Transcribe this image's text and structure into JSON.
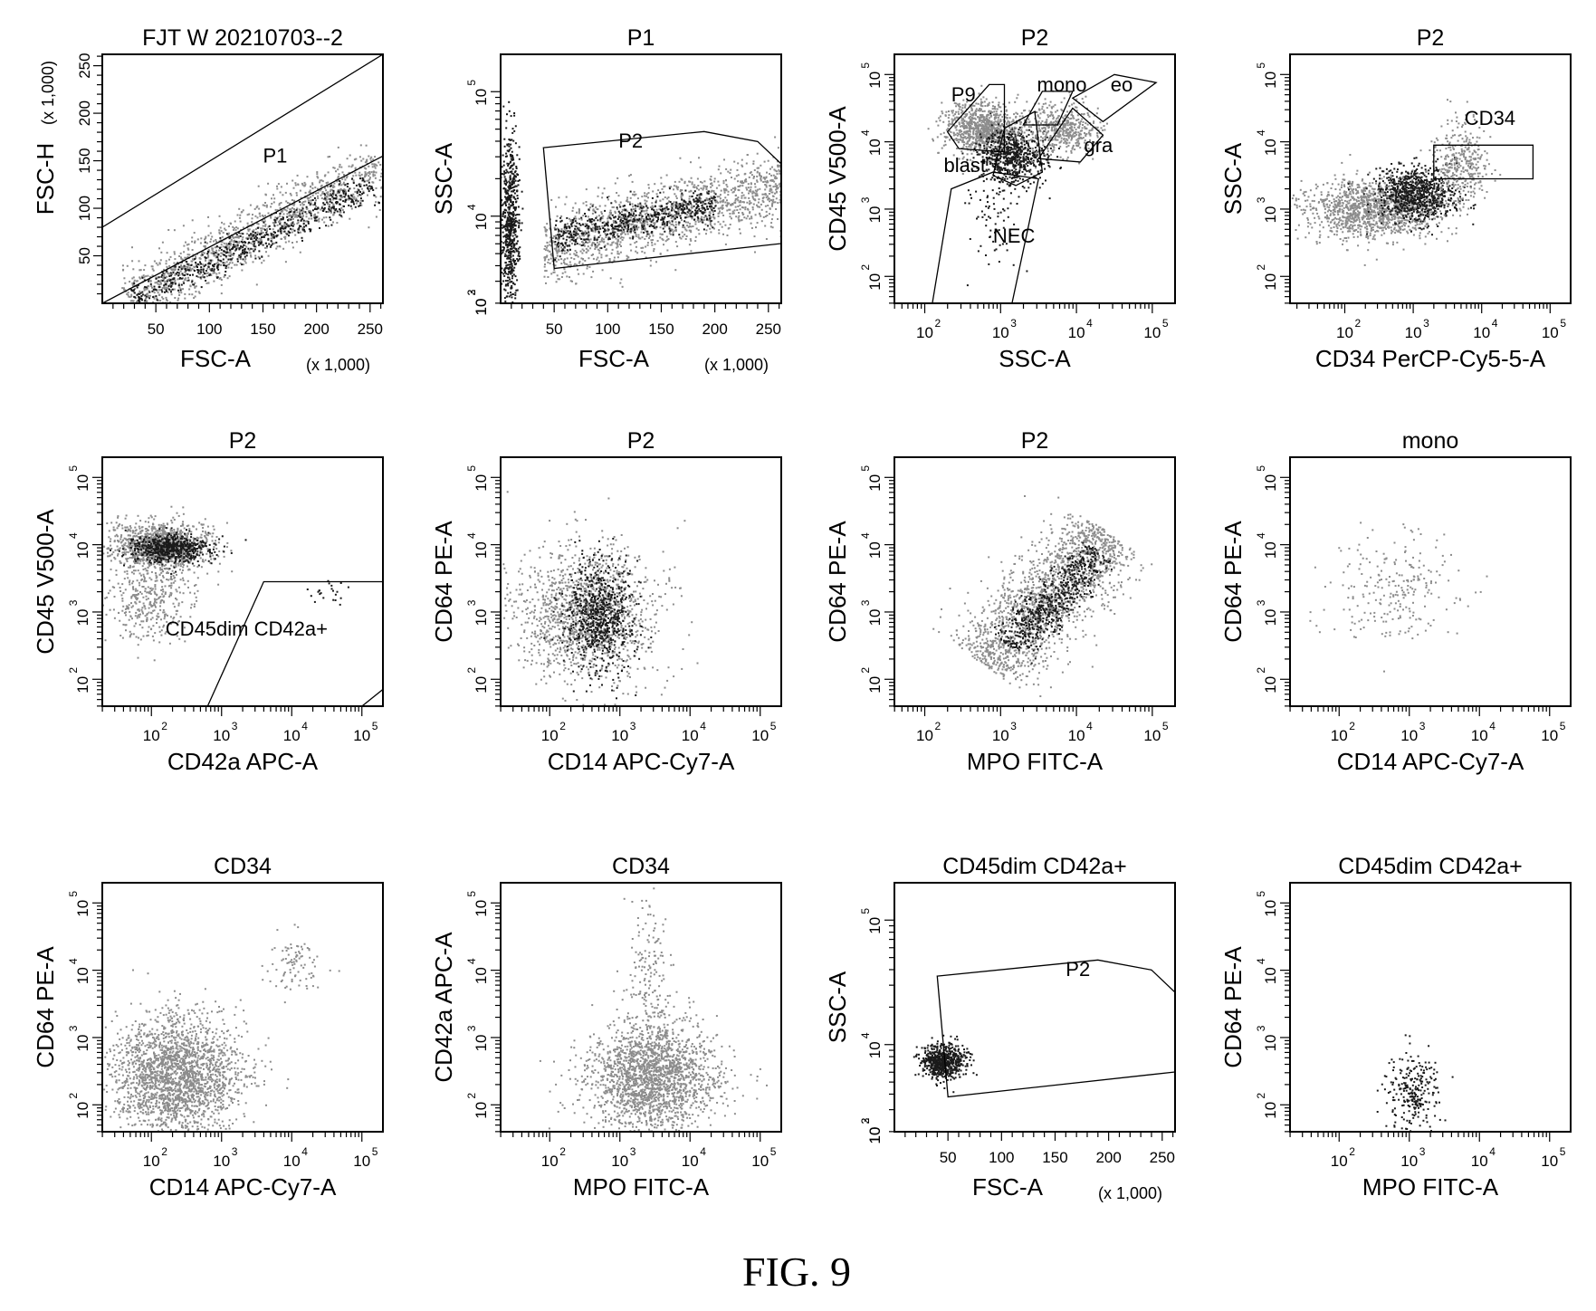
{
  "figure_caption": "FIG. 9",
  "chart_data": [
    {
      "type": "scatter",
      "title": "FJT W 20210703--2",
      "xlabel": "FSC-A",
      "xunit": "(x 1,000)",
      "ylabel": "FSC-H",
      "yunit": "(x 1,000)",
      "xscale": "linear",
      "yscale": "linear",
      "xlim": [
        0,
        262
      ],
      "ylim": [
        0,
        262
      ],
      "xticks": [
        50,
        100,
        150,
        200,
        250
      ],
      "yticks": [
        50,
        100,
        150,
        200,
        250
      ],
      "gates": [
        {
          "name": "P1",
          "label_at": [
            150,
            148
          ],
          "polygon": [
            [
              0,
              80
            ],
            [
              262,
              262
            ],
            [
              262,
              155
            ],
            [
              0,
              0
            ]
          ]
        }
      ],
      "populations": [
        {
          "shape": "line",
          "from": [
            25,
            5
          ],
          "to": [
            260,
            145
          ],
          "spread": 14,
          "n": 1300,
          "shade": "gray"
        },
        {
          "shape": "line",
          "from": [
            30,
            5
          ],
          "to": [
            250,
            125
          ],
          "spread": 8,
          "n": 600,
          "shade": "black"
        }
      ]
    },
    {
      "type": "scatter",
      "title": "P1",
      "xlabel": "FSC-A",
      "xunit": "(x 1,000)",
      "ylabel": "SSC-A",
      "xscale": "linear",
      "yscale": "log",
      "xlim": [
        0,
        262
      ],
      "ylim": [
        3.3,
        5.3
      ],
      "xticks": [
        50,
        100,
        150,
        200,
        250
      ],
      "yticks_exp": [
        2,
        3,
        4,
        5
      ],
      "gates": [
        {
          "name": "P2",
          "label_at": [
            110,
            4.55
          ],
          "polygon": [
            [
              40,
              4.55
            ],
            [
              190,
              4.68
            ],
            [
              240,
              4.6
            ],
            [
              262,
              4.42
            ],
            [
              262,
              3.78
            ],
            [
              50,
              3.58
            ]
          ]
        }
      ],
      "populations": [
        {
          "shape": "line",
          "from": [
            40,
            3.75
          ],
          "to": [
            262,
            4.25
          ],
          "spread": 0.15,
          "n": 1500,
          "shade": "gray"
        },
        {
          "shape": "blob",
          "center": [
            8,
            3.95
          ],
          "sd": [
            4,
            0.35
          ],
          "n": 650,
          "shade": "black"
        },
        {
          "shape": "line",
          "from": [
            50,
            3.85
          ],
          "to": [
            200,
            4.1
          ],
          "spread": 0.07,
          "n": 550,
          "shade": "black"
        }
      ]
    },
    {
      "type": "scatter",
      "title": "P2",
      "xlabel": "SSC-A",
      "ylabel": "CD45 V500-A",
      "xscale": "log",
      "yscale": "log",
      "xlim": [
        1.6,
        5.3
      ],
      "ylim": [
        1.6,
        5.3
      ],
      "xticks_exp": [
        2,
        3,
        4,
        5
      ],
      "yticks_exp": [
        2,
        3,
        4,
        5
      ],
      "gates": [
        {
          "name": "P9",
          "label_at": [
            2.35,
            4.6
          ],
          "polygon": [
            [
              2.3,
              4.15
            ],
            [
              2.85,
              4.85
            ],
            [
              3.05,
              4.85
            ],
            [
              3.05,
              3.85
            ],
            [
              2.45,
              3.9
            ]
          ]
        },
        {
          "name": "mono",
          "label_at": [
            3.48,
            4.75
          ],
          "polygon": [
            [
              3.3,
              4.25
            ],
            [
              3.55,
              4.75
            ],
            [
              3.95,
              4.75
            ],
            [
              3.75,
              4.25
            ]
          ]
        },
        {
          "name": "eo",
          "label_at": [
            4.45,
            4.75
          ],
          "polygon": [
            [
              3.95,
              4.65
            ],
            [
              4.5,
              5.0
            ],
            [
              5.05,
              4.88
            ],
            [
              4.35,
              4.3
            ]
          ]
        },
        {
          "name": "gra",
          "label_at": [
            4.1,
            3.85
          ],
          "polygon": [
            [
              3.5,
              3.75
            ],
            [
              3.95,
              4.5
            ],
            [
              4.35,
              4.1
            ],
            [
              4.05,
              3.7
            ]
          ]
        },
        {
          "name": "blast",
          "label_at": [
            2.25,
            3.55
          ],
          "polygon": [
            [
              2.9,
              3.5
            ],
            [
              3.05,
              4.2
            ],
            [
              3.45,
              4.45
            ],
            [
              3.55,
              3.55
            ],
            [
              3.2,
              3.35
            ]
          ]
        },
        {
          "name": "NEC",
          "label_at": [
            2.9,
            2.5
          ],
          "polygon": [
            [
              2.1,
              1.6
            ],
            [
              2.35,
              3.3
            ],
            [
              2.9,
              3.55
            ],
            [
              3.5,
              3.45
            ],
            [
              3.15,
              1.6
            ]
          ]
        }
      ],
      "populations": [
        {
          "shape": "blob",
          "center": [
            2.75,
            4.2
          ],
          "sd": [
            0.25,
            0.2
          ],
          "n": 900,
          "shade": "gray"
        },
        {
          "shape": "blob",
          "center": [
            3.15,
            3.8
          ],
          "sd": [
            0.22,
            0.2
          ],
          "n": 650,
          "shade": "black"
        },
        {
          "shape": "blob",
          "center": [
            3.8,
            4.2
          ],
          "sd": [
            0.25,
            0.2
          ],
          "n": 500,
          "shade": "gray"
        },
        {
          "shape": "blob",
          "center": [
            2.9,
            3.0
          ],
          "sd": [
            0.2,
            0.45
          ],
          "n": 90,
          "shade": "black"
        }
      ]
    },
    {
      "type": "scatter",
      "title": "P2",
      "xlabel": "CD34 PerCP-Cy5-5-A",
      "ylabel": "SSC-A",
      "xscale": "log",
      "yscale": "log",
      "xlim": [
        1.2,
        5.3
      ],
      "ylim": [
        1.6,
        5.3
      ],
      "xticks_exp": [
        2,
        3,
        4,
        5
      ],
      "yticks_exp": [
        2,
        3,
        4,
        5
      ],
      "gates": [
        {
          "name": "CD34",
          "label_at": [
            3.75,
            4.25
          ],
          "polygon": [
            [
              3.3,
              3.45
            ],
            [
              4.75,
              3.45
            ],
            [
              4.75,
              3.95
            ],
            [
              3.3,
              3.95
            ]
          ]
        }
      ],
      "populations": [
        {
          "shape": "blob",
          "center": [
            2.4,
            3.0
          ],
          "sd": [
            0.5,
            0.22
          ],
          "n": 1300,
          "shade": "gray"
        },
        {
          "shape": "blob",
          "center": [
            3.05,
            3.25
          ],
          "sd": [
            0.28,
            0.2
          ],
          "n": 800,
          "shade": "black"
        },
        {
          "shape": "blob",
          "center": [
            3.7,
            3.7
          ],
          "sd": [
            0.2,
            0.3
          ],
          "n": 350,
          "shade": "gray"
        }
      ]
    },
    {
      "type": "scatter",
      "title": "P2",
      "xlabel": "CD42a APC-A",
      "ylabel": "CD45 V500-A",
      "xscale": "log",
      "yscale": "log",
      "xlim": [
        1.3,
        5.3
      ],
      "ylim": [
        1.6,
        5.3
      ],
      "xticks_exp": [
        2,
        3,
        4,
        5
      ],
      "yticks_exp": [
        2,
        3,
        4,
        5
      ],
      "gates": [
        {
          "name": "CD45dim CD42a+",
          "label_at": [
            2.2,
            2.65
          ],
          "polygon": [
            [
              2.8,
              1.6
            ],
            [
              3.6,
              3.45
            ],
            [
              5.3,
              3.45
            ],
            [
              5.3,
              1.85
            ],
            [
              5.0,
              1.6
            ]
          ]
        }
      ],
      "populations": [
        {
          "shape": "blob",
          "center": [
            2.1,
            4.0
          ],
          "sd": [
            0.35,
            0.18
          ],
          "n": 1100,
          "shade": "gray"
        },
        {
          "shape": "blob",
          "center": [
            2.25,
            3.95
          ],
          "sd": [
            0.28,
            0.1
          ],
          "n": 600,
          "shade": "black"
        },
        {
          "shape": "blob",
          "center": [
            2.0,
            3.2
          ],
          "sd": [
            0.3,
            0.3
          ],
          "n": 400,
          "shade": "gray"
        },
        {
          "shape": "blob",
          "center": [
            4.55,
            3.3
          ],
          "sd": [
            0.15,
            0.1
          ],
          "n": 22,
          "shade": "black"
        }
      ]
    },
    {
      "type": "scatter",
      "title": "P2",
      "xlabel": "CD14 APC-Cy7-A",
      "ylabel": "CD64 PE-A",
      "xscale": "log",
      "yscale": "log",
      "xlim": [
        1.3,
        5.3
      ],
      "ylim": [
        1.6,
        5.3
      ],
      "xticks_exp": [
        2,
        3,
        4,
        5
      ],
      "yticks_exp": [
        2,
        3,
        4,
        5
      ],
      "gates": [],
      "populations": [
        {
          "shape": "blob",
          "center": [
            2.5,
            3.0
          ],
          "sd": [
            0.5,
            0.5
          ],
          "n": 1400,
          "shade": "gray"
        },
        {
          "shape": "blob",
          "center": [
            2.7,
            2.95
          ],
          "sd": [
            0.25,
            0.4
          ],
          "n": 700,
          "shade": "black"
        }
      ]
    },
    {
      "type": "scatter",
      "title": "P2",
      "xlabel": "MPO FITC-A",
      "ylabel": "CD64 PE-A",
      "xscale": "log",
      "yscale": "log",
      "xlim": [
        1.6,
        5.3
      ],
      "ylim": [
        1.6,
        5.3
      ],
      "xticks_exp": [
        2,
        3,
        4,
        5
      ],
      "yticks_exp": [
        2,
        3,
        4,
        5
      ],
      "gates": [],
      "populations": [
        {
          "shape": "line",
          "from": [
            2.8,
            2.2
          ],
          "to": [
            4.4,
            4.2
          ],
          "spread": 0.3,
          "n": 1700,
          "shade": "gray"
        },
        {
          "shape": "line",
          "from": [
            3.1,
            2.5
          ],
          "to": [
            4.3,
            3.9
          ],
          "spread": 0.15,
          "n": 600,
          "shade": "black"
        }
      ]
    },
    {
      "type": "scatter",
      "title": "mono",
      "xlabel": "CD14 APC-Cy7-A",
      "ylabel": "CD64 PE-A",
      "xscale": "log",
      "yscale": "log",
      "xlim": [
        1.3,
        5.3
      ],
      "ylim": [
        1.6,
        5.3
      ],
      "xticks_exp": [
        2,
        3,
        4,
        5
      ],
      "yticks_exp": [
        2,
        3,
        4,
        5
      ],
      "gates": [],
      "populations": [
        {
          "shape": "blob",
          "center": [
            2.8,
            3.35
          ],
          "sd": [
            0.45,
            0.4
          ],
          "n": 240,
          "shade": "gray"
        }
      ]
    },
    {
      "type": "scatter",
      "title": "CD34",
      "xlabel": "CD14 APC-Cy7-A",
      "ylabel": "CD64 PE-A",
      "xscale": "log",
      "yscale": "log",
      "xlim": [
        1.3,
        5.3
      ],
      "ylim": [
        1.6,
        5.3
      ],
      "xticks_exp": [
        2,
        3,
        4,
        5
      ],
      "yticks_exp": [
        2,
        3,
        4,
        5
      ],
      "gates": [],
      "populations": [
        {
          "shape": "blob",
          "center": [
            2.35,
            2.45
          ],
          "sd": [
            0.45,
            0.45
          ],
          "n": 2200,
          "shade": "gray"
        },
        {
          "shape": "blob",
          "center": [
            4.05,
            4.15
          ],
          "sd": [
            0.2,
            0.2
          ],
          "n": 90,
          "shade": "gray"
        }
      ]
    },
    {
      "type": "scatter",
      "title": "CD34",
      "xlabel": "MPO FITC-A",
      "ylabel": "CD42a APC-A",
      "xscale": "log",
      "yscale": "log",
      "xlim": [
        1.3,
        5.3
      ],
      "ylim": [
        1.6,
        5.3
      ],
      "xticks_exp": [
        2,
        3,
        4,
        5
      ],
      "yticks_exp": [
        2,
        3,
        4,
        5
      ],
      "gates": [],
      "populations": [
        {
          "shape": "blob",
          "center": [
            3.45,
            2.4
          ],
          "sd": [
            0.45,
            0.4
          ],
          "n": 2000,
          "shade": "gray"
        },
        {
          "shape": "blob",
          "center": [
            3.4,
            4.0
          ],
          "sd": [
            0.15,
            0.55
          ],
          "n": 160,
          "shade": "gray"
        }
      ]
    },
    {
      "type": "scatter",
      "title": "CD45dim CD42a+",
      "xlabel": "FSC-A",
      "xunit": "(x 1,000)",
      "ylabel": "SSC-A",
      "xscale": "linear",
      "yscale": "log",
      "xlim": [
        0,
        262
      ],
      "ylim": [
        3.3,
        5.3
      ],
      "xticks": [
        50,
        100,
        150,
        200,
        250
      ],
      "yticks_exp": [
        2,
        3,
        4,
        5
      ],
      "gates": [
        {
          "name": "P2",
          "label_at": [
            160,
            4.55
          ],
          "polygon": [
            [
              40,
              4.55
            ],
            [
              190,
              4.68
            ],
            [
              240,
              4.6
            ],
            [
              262,
              4.42
            ],
            [
              262,
              3.78
            ],
            [
              50,
              3.58
            ]
          ]
        }
      ],
      "populations": [
        {
          "shape": "blob",
          "center": [
            45,
            3.87
          ],
          "sd": [
            10,
            0.07
          ],
          "n": 650,
          "shade": "black"
        }
      ]
    },
    {
      "type": "scatter",
      "title": "CD45dim CD42a+",
      "xlabel": "MPO FITC-A",
      "ylabel": "CD64 PE-A",
      "xscale": "log",
      "yscale": "log",
      "xlim": [
        1.3,
        5.3
      ],
      "ylim": [
        1.6,
        5.3
      ],
      "xticks_exp": [
        2,
        3,
        4,
        5
      ],
      "yticks_exp": [
        2,
        3,
        4,
        5
      ],
      "gates": [],
      "populations": [
        {
          "shape": "blob",
          "center": [
            3.05,
            2.2
          ],
          "sd": [
            0.2,
            0.3
          ],
          "n": 260,
          "shade": "black"
        }
      ]
    }
  ]
}
